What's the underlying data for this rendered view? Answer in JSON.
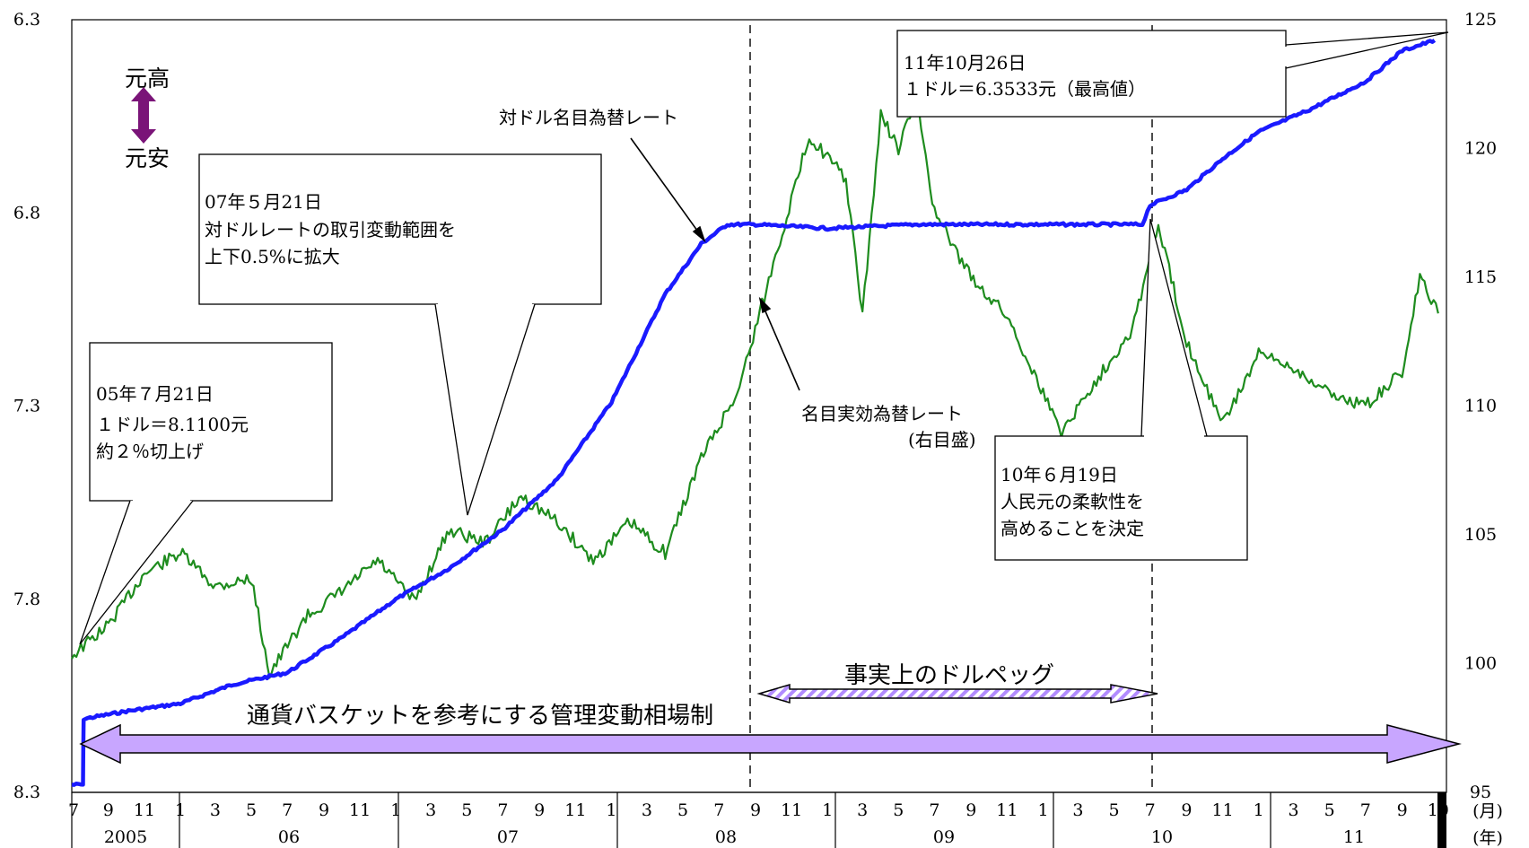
{
  "chart_data": {
    "type": "line",
    "left_axis": {
      "ticks": [
        "6.3",
        "6.8",
        "7.3",
        "7.8",
        "8.3"
      ],
      "min": 6.3,
      "max": 8.3,
      "inverted": true
    },
    "right_axis": {
      "ticks": [
        "125",
        "120",
        "115",
        "110",
        "105",
        "100",
        "95"
      ],
      "min": 95,
      "max": 125
    },
    "x_axis": {
      "months": [
        "7",
        "9",
        "11",
        "1",
        "3",
        "5",
        "7",
        "9",
        "11",
        "1",
        "3",
        "5",
        "7",
        "9",
        "11",
        "1",
        "3",
        "5",
        "7",
        "9",
        "11",
        "1",
        "3",
        "5",
        "7",
        "9",
        "11",
        "1",
        "3",
        "5",
        "7",
        "9",
        "11",
        "1",
        "3",
        "5",
        "7",
        "9",
        "10"
      ],
      "years": [
        "2005",
        "06",
        "07",
        "08",
        "09",
        "10",
        "11"
      ],
      "month_unit": "(月)",
      "year_unit": "(年)"
    },
    "series": [
      {
        "name": "対ドル名目為替レート",
        "color": "#1a1aff",
        "axis": "left",
        "points": [
          [
            "2005-07-01",
            8.28
          ],
          [
            "2005-07-20",
            8.28
          ],
          [
            "2005-07-21",
            8.11
          ],
          [
            "2005-10-01",
            8.09
          ],
          [
            "2006-01-01",
            8.07
          ],
          [
            "2006-04-01",
            8.02
          ],
          [
            "2006-07-01",
            7.99
          ],
          [
            "2006-10-01",
            7.9
          ],
          [
            "2007-01-01",
            7.8
          ],
          [
            "2007-04-01",
            7.72
          ],
          [
            "2007-07-01",
            7.62
          ],
          [
            "2007-10-01",
            7.49
          ],
          [
            "2008-01-01",
            7.29
          ],
          [
            "2008-04-01",
            7.01
          ],
          [
            "2008-06-01",
            6.88
          ],
          [
            "2008-07-15",
            6.83
          ],
          [
            "2008-09-01",
            6.83
          ],
          [
            "2009-01-01",
            6.84
          ],
          [
            "2009-06-01",
            6.83
          ],
          [
            "2010-01-01",
            6.83
          ],
          [
            "2010-06-18",
            6.83
          ],
          [
            "2010-07-01",
            6.78
          ],
          [
            "2010-09-01",
            6.74
          ],
          [
            "2010-11-01",
            6.66
          ],
          [
            "2011-01-01",
            6.59
          ],
          [
            "2011-04-01",
            6.53
          ],
          [
            "2011-07-01",
            6.46
          ],
          [
            "2011-09-01",
            6.38
          ],
          [
            "2011-10-26",
            6.3533
          ]
        ]
      },
      {
        "name": "名目実効為替レート",
        "color": "#1e8c1e",
        "axis": "right",
        "points": [
          [
            "2005-07-01",
            100.3
          ],
          [
            "2005-09-01",
            101.5
          ],
          [
            "2005-11-01",
            103.5
          ],
          [
            "2006-01-01",
            104.3
          ],
          [
            "2006-03-01",
            103.0
          ],
          [
            "2006-05-01",
            103.3
          ],
          [
            "2006-06-01",
            99.6
          ],
          [
            "2006-08-01",
            101.8
          ],
          [
            "2006-10-01",
            102.8
          ],
          [
            "2006-12-01",
            104.0
          ],
          [
            "2007-02-01",
            102.4
          ],
          [
            "2007-04-01",
            105.2
          ],
          [
            "2007-06-01",
            104.7
          ],
          [
            "2007-08-01",
            106.5
          ],
          [
            "2007-10-01",
            105.5
          ],
          [
            "2007-12-01",
            104.0
          ],
          [
            "2008-02-01",
            105.5
          ],
          [
            "2008-04-01",
            104.3
          ],
          [
            "2008-06-01",
            108.0
          ],
          [
            "2008-08-01",
            110.5
          ],
          [
            "2008-10-01",
            115.5
          ],
          [
            "2008-12-01",
            120.5
          ],
          [
            "2009-02-01",
            118.8
          ],
          [
            "2009-03-01",
            113.5
          ],
          [
            "2009-04-01",
            121.3
          ],
          [
            "2009-05-01",
            120.0
          ],
          [
            "2009-06-01",
            122.0
          ],
          [
            "2009-07-01",
            117.5
          ],
          [
            "2009-09-01",
            115.0
          ],
          [
            "2009-11-01",
            113.5
          ],
          [
            "2010-01-01",
            110.5
          ],
          [
            "2010-02-01",
            109.0
          ],
          [
            "2010-04-01",
            111.0
          ],
          [
            "2010-06-01",
            113.0
          ],
          [
            "2010-07-15",
            117.0
          ],
          [
            "2010-09-01",
            112.5
          ],
          [
            "2010-11-01",
            109.3
          ],
          [
            "2011-01-01",
            112.0
          ],
          [
            "2011-03-01",
            111.5
          ],
          [
            "2011-05-01",
            110.5
          ],
          [
            "2011-07-01",
            110.0
          ],
          [
            "2011-09-01",
            111.3
          ],
          [
            "2011-10-01",
            115.0
          ],
          [
            "2011-11-01",
            113.6
          ]
        ]
      }
    ],
    "annotations": {
      "cny_up": "元高",
      "cny_down": "元安",
      "box_2005": [
        "05年７月21日",
        "１ドル＝8.1100元",
        "約２％切上げ"
      ],
      "box_2007": [
        "07年５月21日",
        "対ドルレートの取引変動範囲を",
        "上下0.5%に拡大"
      ],
      "box_2010": [
        "10年６月19日",
        "人民元の柔軟性を",
        "高めることを決定"
      ],
      "box_2011": [
        "11年10月26日",
        "１ドル＝6.3533元（最高値）"
      ],
      "label_usd": "対ドル名目為替レート",
      "label_neer": [
        "名目実効為替レート",
        "(右目盛)"
      ],
      "regime_peg": "事実上のドルペッグ",
      "regime_basket": "通貨バスケットを参考にする管理変動相場制"
    }
  }
}
